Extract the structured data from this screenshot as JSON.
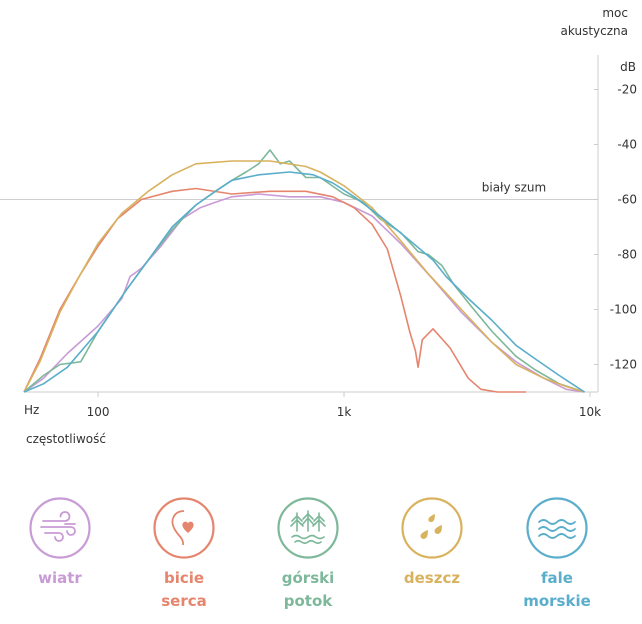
{
  "chart_data": {
    "type": "line",
    "ylabel": "moc akustyczna",
    "yunit": "dB",
    "xlabel": "częstotliwość",
    "xunit": "Hz",
    "xscale": "log",
    "xlim": [
      50,
      10000
    ],
    "ylim": [
      -130,
      -10
    ],
    "yticks": [
      -20,
      -40,
      -60,
      -80,
      -100,
      -120
    ],
    "ytick_labels": [
      "-20",
      "-40",
      "-60",
      "-80",
      "-100",
      "-120"
    ],
    "xticks": [
      100,
      1000,
      10000
    ],
    "xtick_labels": [
      "100",
      "1k",
      "10k"
    ],
    "reference": {
      "label": "biały szum",
      "y": -60
    },
    "series": [
      {
        "name": "wiatr",
        "color": "#c99bd6",
        "points": [
          [
            50,
            -130
          ],
          [
            60,
            -125
          ],
          [
            75,
            -116
          ],
          [
            100,
            -106
          ],
          [
            125,
            -96
          ],
          [
            135,
            -88
          ],
          [
            150,
            -85
          ],
          [
            180,
            -77
          ],
          [
            220,
            -67
          ],
          [
            260,
            -63
          ],
          [
            300,
            -61
          ],
          [
            350,
            -59
          ],
          [
            450,
            -58
          ],
          [
            600,
            -59
          ],
          [
            800,
            -59
          ],
          [
            1000,
            -61
          ],
          [
            1300,
            -66
          ],
          [
            1700,
            -76
          ],
          [
            2300,
            -89
          ],
          [
            3000,
            -101
          ],
          [
            4000,
            -112
          ],
          [
            5000,
            -119
          ],
          [
            6500,
            -125
          ],
          [
            8000,
            -129
          ],
          [
            9500,
            -130
          ]
        ]
      },
      {
        "name": "bicie serca",
        "color": "#e5856e",
        "points": [
          [
            50,
            -130
          ],
          [
            58,
            -118
          ],
          [
            70,
            -100
          ],
          [
            85,
            -87
          ],
          [
            100,
            -77
          ],
          [
            120,
            -67
          ],
          [
            150,
            -60
          ],
          [
            200,
            -57
          ],
          [
            250,
            -56
          ],
          [
            350,
            -58
          ],
          [
            500,
            -57
          ],
          [
            700,
            -57
          ],
          [
            900,
            -59
          ],
          [
            1100,
            -63
          ],
          [
            1300,
            -69
          ],
          [
            1500,
            -78
          ],
          [
            1700,
            -95
          ],
          [
            1850,
            -108
          ],
          [
            1950,
            -115
          ],
          [
            2000,
            -121
          ],
          [
            2080,
            -111
          ],
          [
            2300,
            -107
          ],
          [
            2700,
            -114
          ],
          [
            3200,
            -125
          ],
          [
            3600,
            -129
          ],
          [
            4200,
            -130
          ],
          [
            5500,
            -130
          ]
        ]
      },
      {
        "name": "górski potok",
        "color": "#7db89a",
        "points": [
          [
            50,
            -130
          ],
          [
            60,
            -124
          ],
          [
            70,
            -120
          ],
          [
            85,
            -119
          ],
          [
            100,
            -108
          ],
          [
            130,
            -93
          ],
          [
            160,
            -82
          ],
          [
            200,
            -71
          ],
          [
            250,
            -62
          ],
          [
            300,
            -57
          ],
          [
            350,
            -53
          ],
          [
            400,
            -50
          ],
          [
            450,
            -47
          ],
          [
            500,
            -42
          ],
          [
            550,
            -47
          ],
          [
            600,
            -46
          ],
          [
            700,
            -52
          ],
          [
            800,
            -52
          ],
          [
            1000,
            -58
          ],
          [
            1200,
            -61
          ],
          [
            1400,
            -67
          ],
          [
            1700,
            -72
          ],
          [
            2000,
            -79
          ],
          [
            2200,
            -80
          ],
          [
            2500,
            -84
          ],
          [
            2800,
            -91
          ],
          [
            3300,
            -99
          ],
          [
            4000,
            -108
          ],
          [
            5000,
            -117
          ],
          [
            6000,
            -122
          ],
          [
            7500,
            -127
          ],
          [
            9500,
            -130
          ]
        ]
      },
      {
        "name": "deszcz",
        "color": "#d9b25e",
        "points": [
          [
            50,
            -130
          ],
          [
            58,
            -119
          ],
          [
            70,
            -101
          ],
          [
            85,
            -87
          ],
          [
            100,
            -76
          ],
          [
            125,
            -65
          ],
          [
            160,
            -57
          ],
          [
            200,
            -51
          ],
          [
            250,
            -47
          ],
          [
            350,
            -46
          ],
          [
            500,
            -46
          ],
          [
            700,
            -48
          ],
          [
            800,
            -50
          ],
          [
            1000,
            -55
          ],
          [
            1300,
            -63
          ],
          [
            1700,
            -75
          ],
          [
            2200,
            -87
          ],
          [
            3000,
            -100
          ],
          [
            4000,
            -112
          ],
          [
            5000,
            -120
          ],
          [
            6500,
            -125
          ],
          [
            8000,
            -128
          ],
          [
            9500,
            -130
          ]
        ]
      },
      {
        "name": "fale morskie",
        "color": "#5aaecb",
        "points": [
          [
            50,
            -130
          ],
          [
            60,
            -127
          ],
          [
            75,
            -121
          ],
          [
            100,
            -108
          ],
          [
            130,
            -93
          ],
          [
            160,
            -82
          ],
          [
            200,
            -70
          ],
          [
            250,
            -62
          ],
          [
            300,
            -57
          ],
          [
            350,
            -53
          ],
          [
            450,
            -51
          ],
          [
            600,
            -50
          ],
          [
            750,
            -51
          ],
          [
            900,
            -54
          ],
          [
            1100,
            -59
          ],
          [
            1400,
            -66
          ],
          [
            1800,
            -74
          ],
          [
            2300,
            -82
          ],
          [
            2600,
            -88
          ],
          [
            3200,
            -96
          ],
          [
            4000,
            -104
          ],
          [
            5000,
            -113
          ],
          [
            6000,
            -118
          ],
          [
            7500,
            -124
          ],
          [
            9500,
            -130
          ]
        ]
      }
    ]
  },
  "legend": [
    {
      "line1": "wiatr",
      "line2": "",
      "color": "#c99bd6",
      "icon": "wind-icon"
    },
    {
      "line1": "bicie",
      "line2": "serca",
      "color": "#e5856e",
      "icon": "heart-icon"
    },
    {
      "line1": "górski",
      "line2": "potok",
      "color": "#7db89a",
      "icon": "trees-stream-icon"
    },
    {
      "line1": "deszcz",
      "line2": "",
      "color": "#d9b25e",
      "icon": "raindrops-icon"
    },
    {
      "line1": "fale",
      "line2": "morskie",
      "color": "#5aaecb",
      "icon": "waves-icon"
    }
  ]
}
